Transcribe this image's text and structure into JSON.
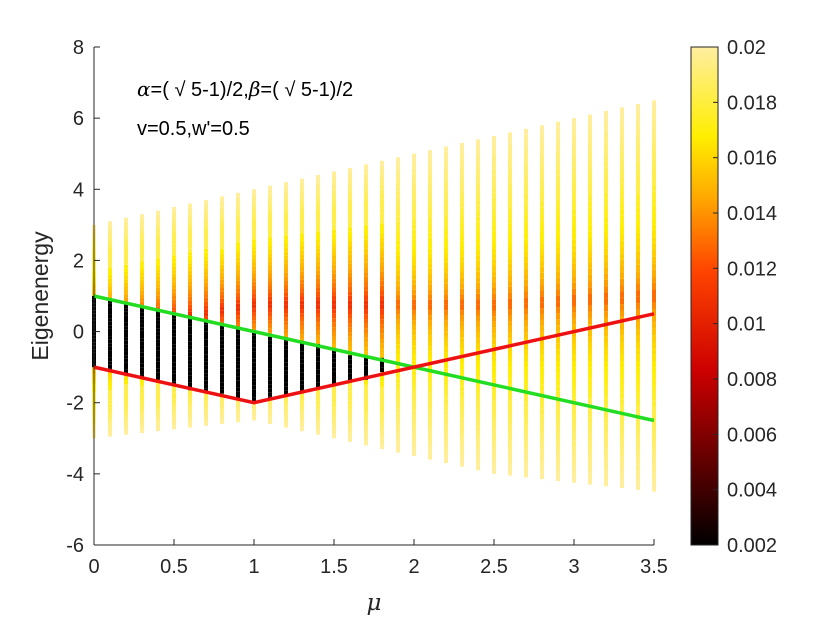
{
  "chart_data": {
    "type": "scatter",
    "xlabel": "μ",
    "ylabel": "Eigenenergy",
    "xlim": [
      0,
      3.5
    ],
    "ylim": [
      -6,
      8
    ],
    "x_ticks": [
      0,
      0.5,
      1,
      1.5,
      2,
      2.5,
      3,
      3.5
    ],
    "x_tick_labels": [
      "0",
      "0.5",
      "1",
      "1.5",
      "2",
      "2.5",
      "3",
      "3.5"
    ],
    "y_ticks": [
      -6,
      -4,
      -2,
      0,
      2,
      4,
      6,
      8
    ],
    "y_tick_labels": [
      "-6",
      "-4",
      "-2",
      "0",
      "2",
      "4",
      "6",
      "8"
    ],
    "annotations": [
      "α=( √ 5-1)/2,β=( √ 5-1)/2",
      "v=0.5,w'=0.5"
    ],
    "mu_values": [
      0,
      0.1,
      0.2,
      0.3,
      0.4,
      0.5,
      0.6,
      0.7,
      0.8,
      0.9,
      1.0,
      1.1,
      1.2,
      1.3,
      1.4,
      1.5,
      1.6,
      1.7,
      1.8,
      1.9,
      2.0,
      2.1,
      2.2,
      2.3,
      2.4,
      2.5,
      2.6,
      2.7,
      2.8,
      2.9,
      3.0,
      3.1,
      3.2,
      3.3,
      3.4,
      3.5
    ],
    "spectrum_upper": [
      3.0,
      3.1,
      3.2,
      3.3,
      3.4,
      3.5,
      3.6,
      3.7,
      3.8,
      3.9,
      4.0,
      4.1,
      4.2,
      4.3,
      4.4,
      4.5,
      4.6,
      4.7,
      4.8,
      4.9,
      5.0,
      5.1,
      5.2,
      5.3,
      5.4,
      5.5,
      5.6,
      5.7,
      5.8,
      5.9,
      6.0,
      6.1,
      6.2,
      6.3,
      6.4,
      6.5
    ],
    "spectrum_lower": [
      -3.0,
      -2.95,
      -2.9,
      -2.85,
      -2.8,
      -2.75,
      -2.7,
      -2.65,
      -2.6,
      -2.55,
      -2.5,
      -2.6,
      -2.7,
      -2.8,
      -2.9,
      -3.0,
      -3.1,
      -3.2,
      -3.3,
      -3.4,
      -3.5,
      -3.6,
      -3.7,
      -3.8,
      -3.9,
      -4.0,
      -4.05,
      -4.1,
      -4.15,
      -4.2,
      -4.25,
      -4.3,
      -4.35,
      -4.4,
      -4.45,
      -4.5
    ],
    "series": [
      {
        "values_x": [
          0,
          3.5
        ],
        "values_y": [
          1,
          -2.5
        ],
        "color": "#22dd22"
      },
      {
        "values_x": [
          0,
          1,
          3.5
        ],
        "values_y": [
          -1,
          -2,
          0.5
        ],
        "color": "#ee1111"
      }
    ],
    "colorbar": {
      "min": 0.002,
      "max": 0.02,
      "ticks": [
        0.002,
        0.004,
        0.006,
        0.008,
        0.01,
        0.012,
        0.014,
        0.016,
        0.018,
        0.02
      ],
      "tick_labels": [
        "0.002",
        "0.004",
        "0.006",
        "0.008",
        "0.01",
        "0.012",
        "0.014",
        "0.016",
        "0.018",
        "0.02"
      ],
      "colormap": "hot"
    },
    "grid": false
  }
}
